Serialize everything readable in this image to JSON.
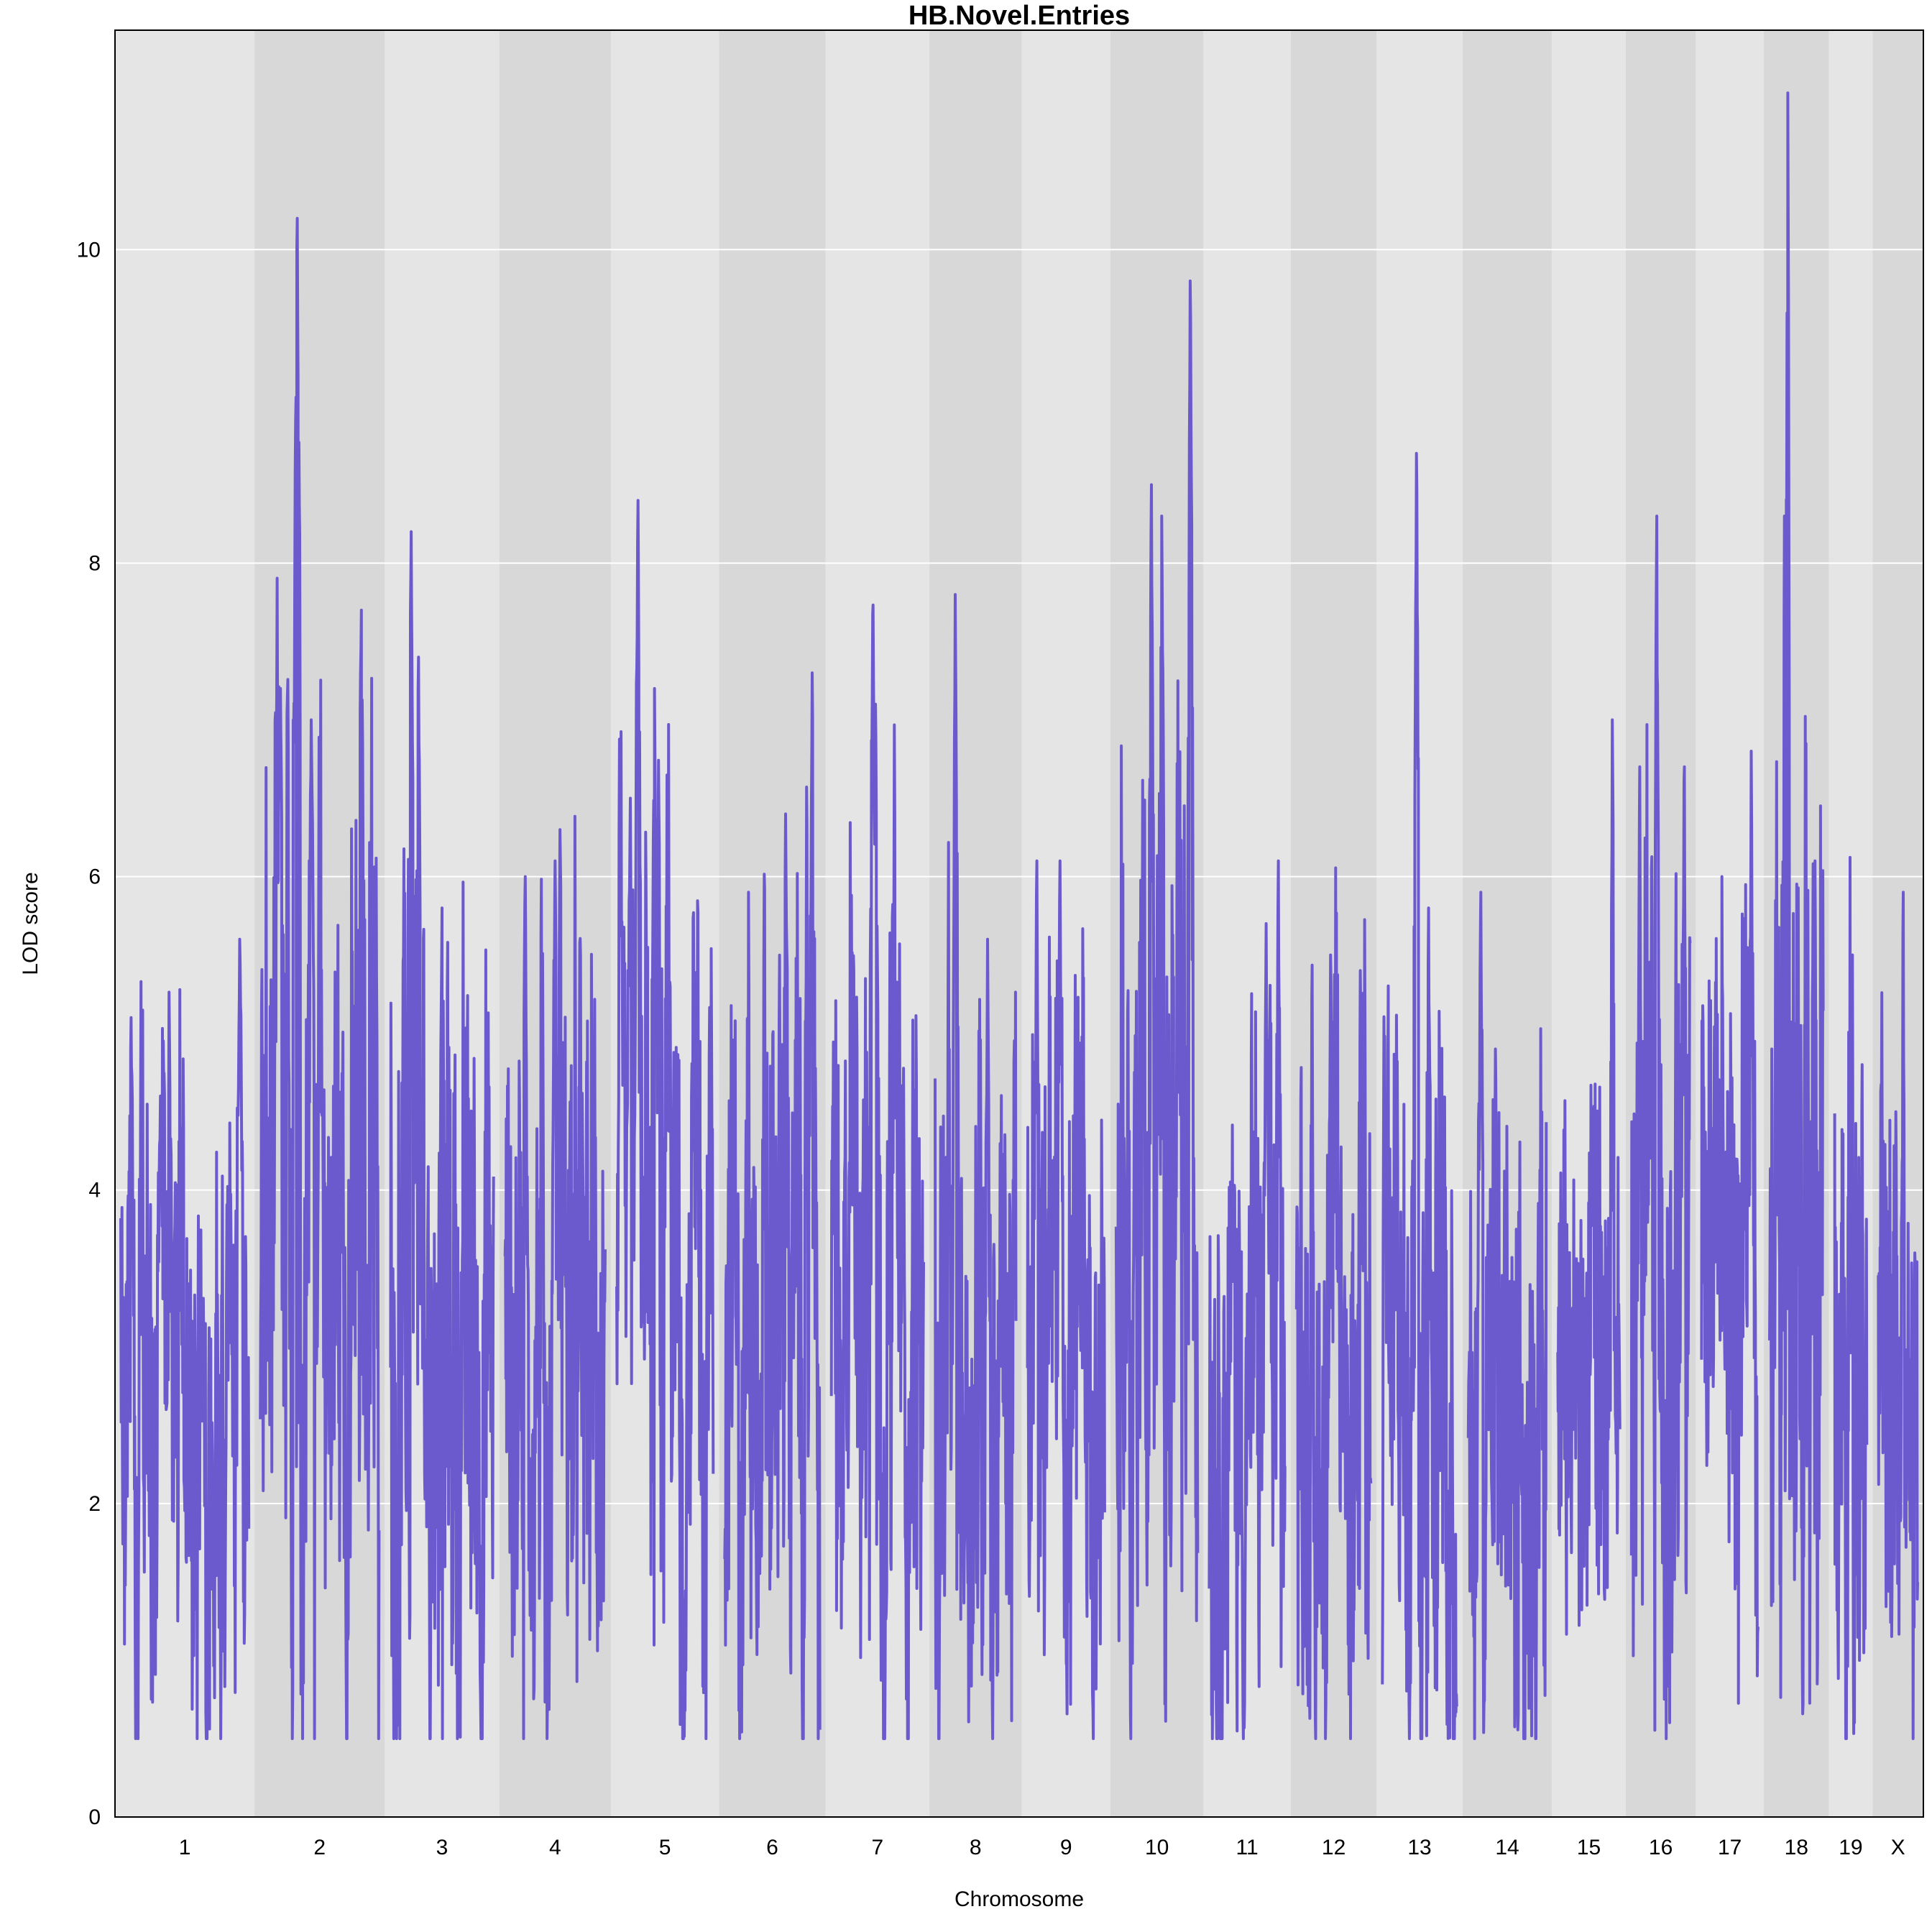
{
  "chart_data": {
    "type": "line",
    "title": "HB.Novel.Entries",
    "xlabel": "Chromosome",
    "ylabel": "LOD score",
    "ylim": [
      0,
      11.4
    ],
    "yticks": [
      0,
      2,
      4,
      6,
      8,
      10
    ],
    "grid": "horizontal",
    "background_bands": [
      "#e5e5e5",
      "#d8d8d8"
    ],
    "line_color": "#6a5acd",
    "chromosomes": [
      {
        "name": "1",
        "length": 195,
        "base": 2.6,
        "amp": 1.5,
        "peaks": [
          [
            0.08,
            5.1
          ],
          [
            0.31,
            4.6
          ],
          [
            0.93,
            5.6
          ]
        ]
      },
      {
        "name": "2",
        "length": 182,
        "base": 3.6,
        "amp": 2.1,
        "peaks": [
          [
            0.17,
            7.2
          ],
          [
            0.31,
            10.2
          ],
          [
            0.43,
            7.0
          ],
          [
            0.85,
            7.7
          ]
        ]
      },
      {
        "name": "3",
        "length": 160,
        "base": 3.0,
        "amp": 1.8,
        "peaks": [
          [
            0.2,
            8.2
          ],
          [
            0.27,
            7.4
          ],
          [
            0.5,
            5.8
          ]
        ]
      },
      {
        "name": "4",
        "length": 156,
        "base": 3.0,
        "amp": 1.7,
        "peaks": [
          [
            0.2,
            6.0
          ],
          [
            0.55,
            6.3
          ],
          [
            0.5,
            6.1
          ]
        ]
      },
      {
        "name": "5",
        "length": 151,
        "base": 3.2,
        "amp": 1.8,
        "peaks": [
          [
            0.14,
            6.5
          ],
          [
            0.22,
            8.4
          ],
          [
            0.39,
            7.2
          ]
        ]
      },
      {
        "name": "6",
        "length": 149,
        "base": 3.0,
        "amp": 1.7,
        "peaks": [
          [
            0.25,
            5.9
          ],
          [
            0.64,
            6.4
          ],
          [
            0.92,
            7.3
          ]
        ]
      },
      {
        "name": "7",
        "length": 145,
        "base": 3.1,
        "amp": 1.8,
        "peaks": [
          [
            0.45,
            7.9
          ],
          [
            0.48,
            7.1
          ],
          [
            0.7,
            5.1
          ]
        ]
      },
      {
        "name": "8",
        "length": 129,
        "base": 2.9,
        "amp": 1.7,
        "peaks": [
          [
            0.25,
            7.8
          ],
          [
            0.65,
            5.6
          ]
        ]
      },
      {
        "name": "9",
        "length": 124,
        "base": 2.8,
        "amp": 1.7,
        "peaks": [
          [
            0.12,
            6.1
          ],
          [
            0.42,
            6.1
          ]
        ]
      },
      {
        "name": "10",
        "length": 130,
        "base": 3.6,
        "amp": 2.0,
        "peaks": [
          [
            0.43,
            8.5
          ],
          [
            0.56,
            8.3
          ],
          [
            0.91,
            9.8
          ]
        ]
      },
      {
        "name": "11",
        "length": 122,
        "base": 2.8,
        "amp": 1.6,
        "peaks": [
          [
            0.75,
            5.7
          ],
          [
            0.91,
            6.1
          ]
        ]
      },
      {
        "name": "12",
        "length": 120,
        "base": 2.8,
        "amp": 1.6,
        "peaks": [
          [
            0.46,
            5.5
          ],
          [
            0.86,
            5.4
          ]
        ]
      },
      {
        "name": "13",
        "length": 120,
        "base": 2.7,
        "amp": 1.6,
        "peaks": [
          [
            0.46,
            8.7
          ],
          [
            0.62,
            5.8
          ]
        ]
      },
      {
        "name": "14",
        "length": 125,
        "base": 2.7,
        "amp": 1.6,
        "peaks": [
          [
            0.16,
            5.9
          ],
          [
            0.35,
            4.9
          ]
        ]
      },
      {
        "name": "15",
        "length": 103,
        "base": 2.7,
        "amp": 1.5,
        "peaks": [
          [
            0.88,
            7.0
          ],
          [
            0.55,
            4.5
          ]
        ]
      },
      {
        "name": "16",
        "length": 98,
        "base": 3.3,
        "amp": 1.8,
        "peaks": [
          [
            0.14,
            6.7
          ],
          [
            0.43,
            8.3
          ],
          [
            0.9,
            6.9
          ]
        ]
      },
      {
        "name": "17",
        "length": 95,
        "base": 3.1,
        "amp": 1.7,
        "peaks": [
          [
            0.36,
            6.0
          ],
          [
            0.88,
            6.8
          ]
        ]
      },
      {
        "name": "18",
        "length": 91,
        "base": 3.6,
        "amp": 2.2,
        "peaks": [
          [
            0.28,
            8.3
          ],
          [
            0.34,
            11.0
          ],
          [
            0.85,
            6.1
          ]
        ]
      },
      {
        "name": "19",
        "length": 61,
        "base": 2.8,
        "amp": 1.6,
        "peaks": [
          [
            0.55,
            5.5
          ],
          [
            0.85,
            4.8
          ]
        ]
      },
      {
        "name": "X",
        "length": 71,
        "base": 2.5,
        "amp": 1.5,
        "peaks": [
          [
            0.63,
            5.9
          ],
          [
            0.45,
            4.5
          ]
        ]
      }
    ]
  }
}
